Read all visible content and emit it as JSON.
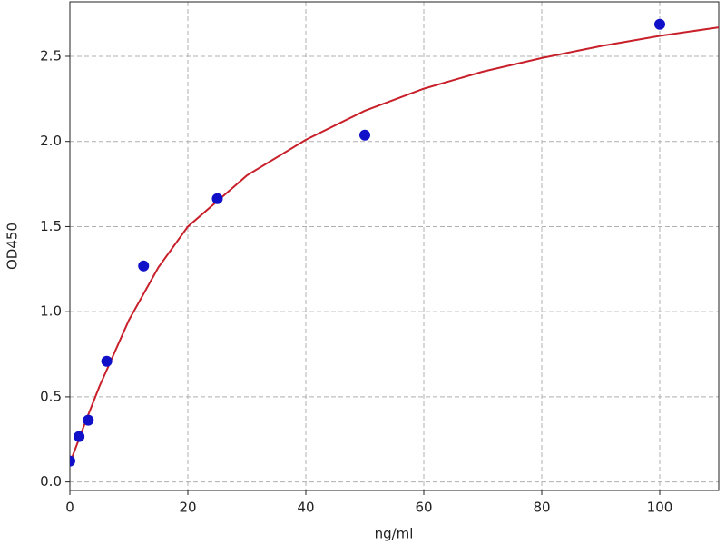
{
  "chart_data": {
    "type": "scatter",
    "xlabel": "ng/ml",
    "ylabel": "OD450",
    "xlim": [
      0,
      110
    ],
    "ylim": [
      -0.05,
      2.82
    ],
    "xticks": [
      0,
      20,
      40,
      60,
      80,
      100
    ],
    "yticks": [
      {
        "value": 0,
        "label": "0.0"
      },
      0.5,
      {
        "value": 1,
        "label": "1.0"
      },
      1.5,
      {
        "value": 2,
        "label": "2.0"
      },
      2.5
    ],
    "grid": true,
    "series": [
      {
        "type": "scatter",
        "color": "#1010c8",
        "x": [
          0,
          1.56,
          3.12,
          6.25,
          12.5,
          25,
          50,
          100
        ],
        "values": [
          0.123,
          0.267,
          0.363,
          0.709,
          1.269,
          1.664,
          2.037,
          2.688
        ]
      },
      {
        "type": "line",
        "color": "#c8202a",
        "x": [
          0,
          2.5,
          5,
          10,
          15,
          20,
          30,
          40,
          50,
          60,
          70,
          80,
          90,
          100,
          110
        ],
        "values": [
          0.11,
          0.34,
          0.56,
          0.95,
          1.26,
          1.5,
          1.8,
          2.01,
          2.18,
          2.31,
          2.41,
          2.49,
          2.56,
          2.62,
          2.67
        ]
      }
    ]
  }
}
